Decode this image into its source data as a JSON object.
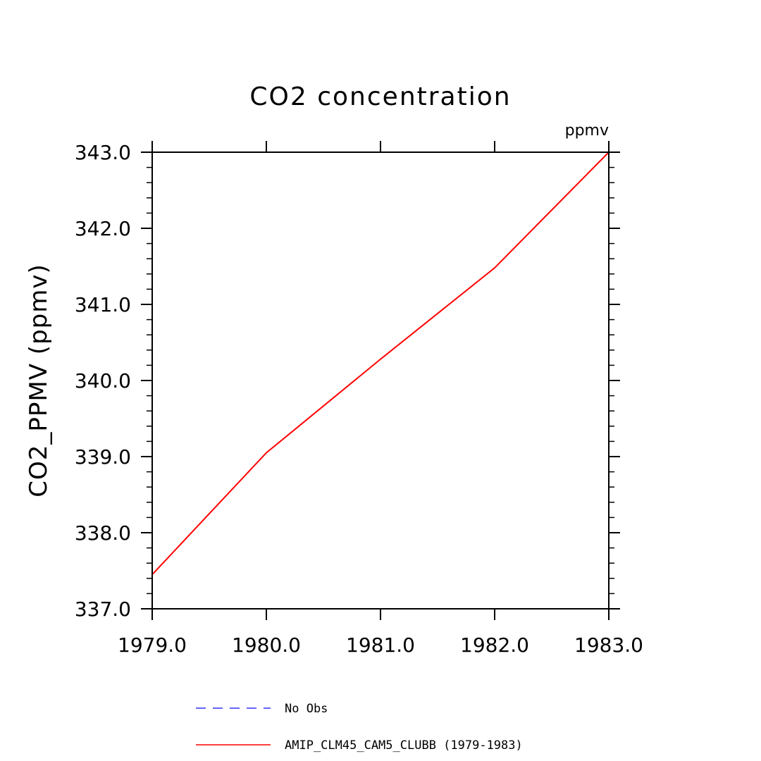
{
  "chart_data": {
    "type": "line",
    "title": "CO2 concentration",
    "units_label": "ppmv",
    "ylabel": "CO2_PPMV   (ppmv)",
    "xlabel": "",
    "xlim": [
      1979.0,
      1983.0
    ],
    "ylim": [
      337.0,
      343.0
    ],
    "x_ticks": [
      "1979.0",
      "1980.0",
      "1981.0",
      "1982.0",
      "1983.0"
    ],
    "y_ticks": [
      "337.0",
      "338.0",
      "339.0",
      "340.0",
      "341.0",
      "342.0",
      "343.0"
    ],
    "grid": false,
    "legend_position": "bottom",
    "series": [
      {
        "name": "No Obs",
        "color": "#3333ff",
        "style": "dashed",
        "x": [],
        "y": []
      },
      {
        "name": "AMIP_CLM45_CAM5_CLUBB (1979-1983)",
        "color": "#ff0000",
        "style": "solid",
        "x": [
          1979.0,
          1980.0,
          1981.0,
          1982.0,
          1983.0
        ],
        "y": [
          337.45,
          339.05,
          340.28,
          341.48,
          343.0
        ]
      }
    ]
  }
}
